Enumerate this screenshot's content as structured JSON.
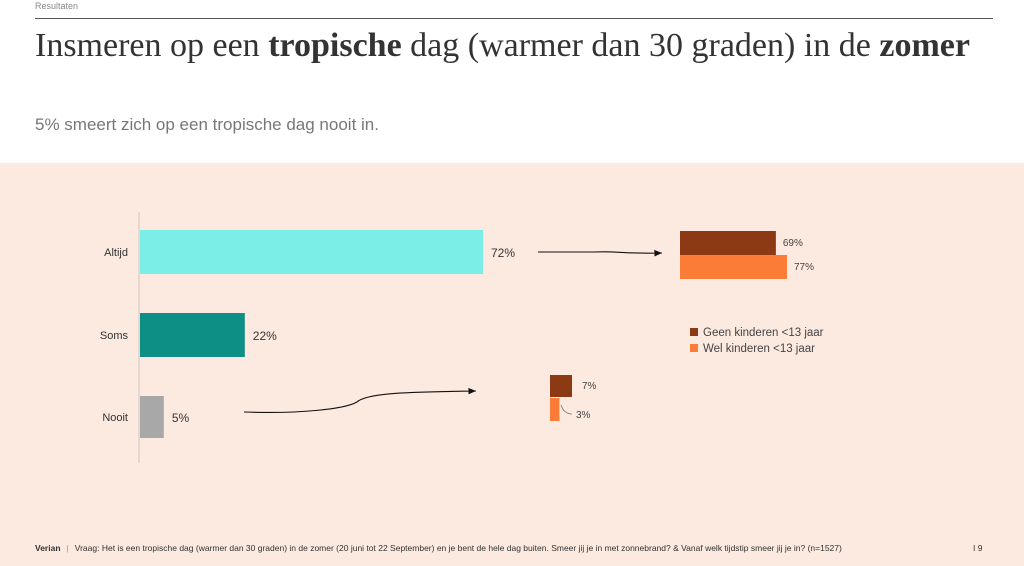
{
  "header": {
    "section": "Resultaten",
    "title_parts": [
      "Insmeren op een ",
      "tropische",
      " dag (warmer dan 30 graden) in de ",
      "zomer"
    ],
    "subtitle": "5% smeert zich op een tropische dag nooit in."
  },
  "footer": {
    "brand": "Verian",
    "separator": "|",
    "question": "Vraag: Het is een tropische dag (warmer dan 30 graden) in de zomer (20 juni tot 22 September) en je bent de hele dag buiten. Smeer jij je in met zonnebrand? & Vanaf welk tijdstip smeer jij je in? (n=1527)",
    "page": "I   9"
  },
  "chart_data": [
    {
      "type": "bar",
      "orientation": "horizontal",
      "categories": [
        "Altijd",
        "Soms",
        "Nooit"
      ],
      "values": [
        72,
        22,
        5
      ],
      "value_labels": [
        "72%",
        "22%",
        "5%"
      ],
      "colors": [
        "#7ceee8",
        "#0d8f86",
        "#a8a8a8"
      ],
      "xlim": [
        0,
        100
      ]
    },
    {
      "type": "bar",
      "orientation": "horizontal",
      "category": "Altijd",
      "series": [
        {
          "name": "Geen kinderen <13 jaar",
          "values": [
            69
          ],
          "label": "69%",
          "color": "#8b3a14"
        },
        {
          "name": "Wel kinderen <13 jaar",
          "values": [
            77
          ],
          "label": "77%",
          "color": "#fb7c36"
        }
      ]
    },
    {
      "type": "bar",
      "orientation": "horizontal",
      "category": "Nooit",
      "series": [
        {
          "name": "Geen kinderen <13 jaar",
          "values": [
            7
          ],
          "label": "7%",
          "color": "#8b3a14"
        },
        {
          "name": "Wel kinderen <13 jaar",
          "values": [
            3
          ],
          "label": "3%",
          "color": "#fb7c36"
        }
      ]
    }
  ],
  "legend": {
    "position": "right",
    "items": [
      {
        "label": "Geen kinderen <13 jaar",
        "color": "#8b3a14"
      },
      {
        "label": "Wel kinderen <13 jaar",
        "color": "#fb7c36"
      }
    ]
  }
}
